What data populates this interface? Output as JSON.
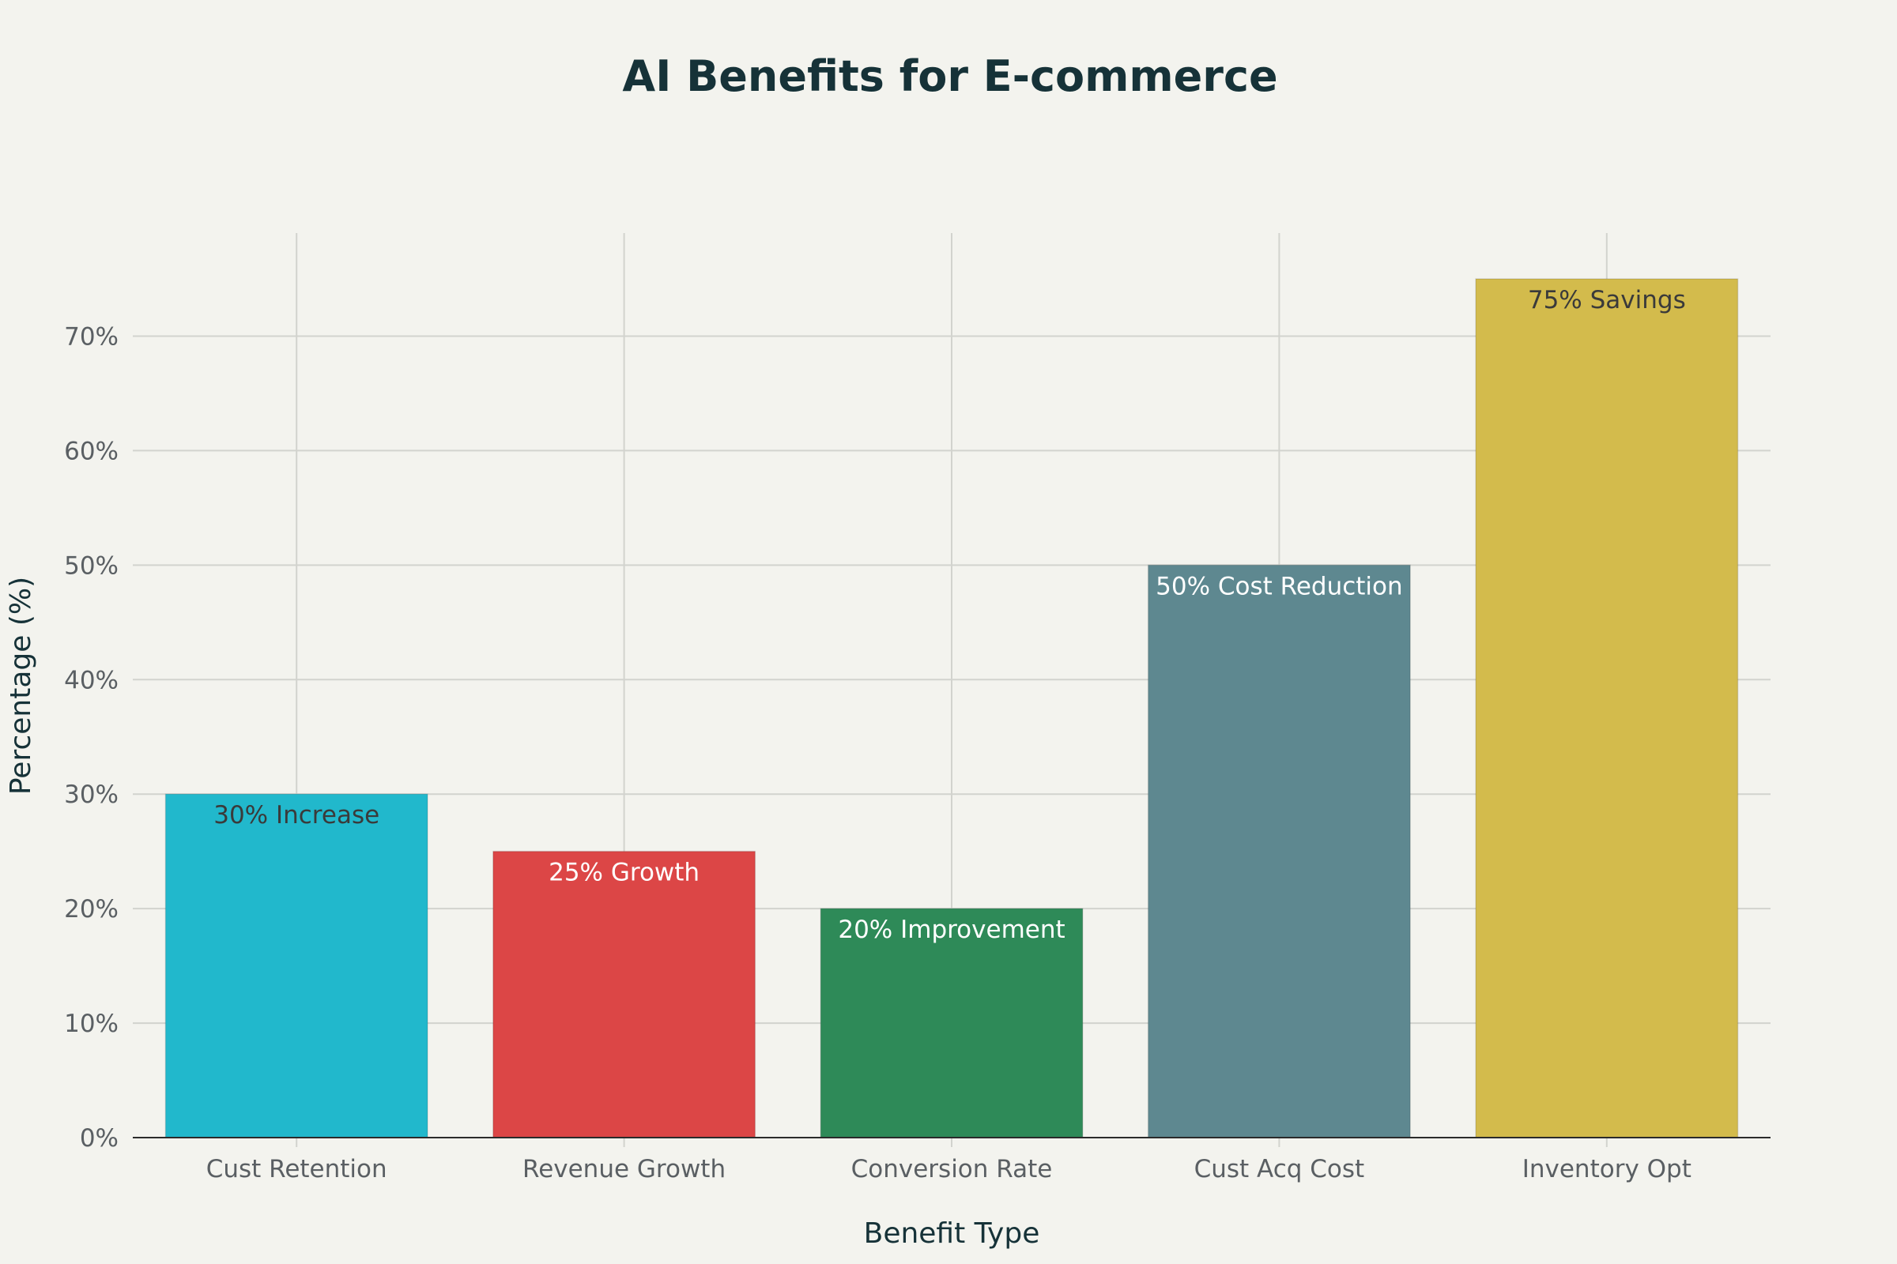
{
  "chart_data": {
    "type": "bar",
    "title": "AI Benefits for E-commerce",
    "xlabel": "Benefit Type",
    "ylabel": "Percentage (%)",
    "categories": [
      "Cust Retention",
      "Revenue Growth",
      "Conversion Rate",
      "Cust Acq Cost",
      "Inventory Opt"
    ],
    "values": [
      30,
      25,
      20,
      50,
      75
    ],
    "data_labels": [
      "30% Increase",
      "25% Growth",
      "20% Improvement",
      "50% Cost Reduction",
      "75% Savings"
    ],
    "bar_colors": [
      "#21b8cc",
      "#dc4646",
      "#2e8a58",
      "#5e8890",
      "#d3bb4c"
    ],
    "label_colors": [
      "#3a3a3a",
      "#ffffff",
      "#ffffff",
      "#ffffff",
      "#3a3a3a"
    ],
    "y_ticks": [
      0,
      10,
      20,
      30,
      40,
      50,
      60,
      70
    ],
    "y_tick_labels": [
      "0%",
      "10%",
      "20%",
      "30%",
      "40%",
      "50%",
      "60%",
      "70%"
    ],
    "ylim": [
      0,
      79
    ],
    "grid": true,
    "legend": "none",
    "background": "#f3f3ee"
  }
}
